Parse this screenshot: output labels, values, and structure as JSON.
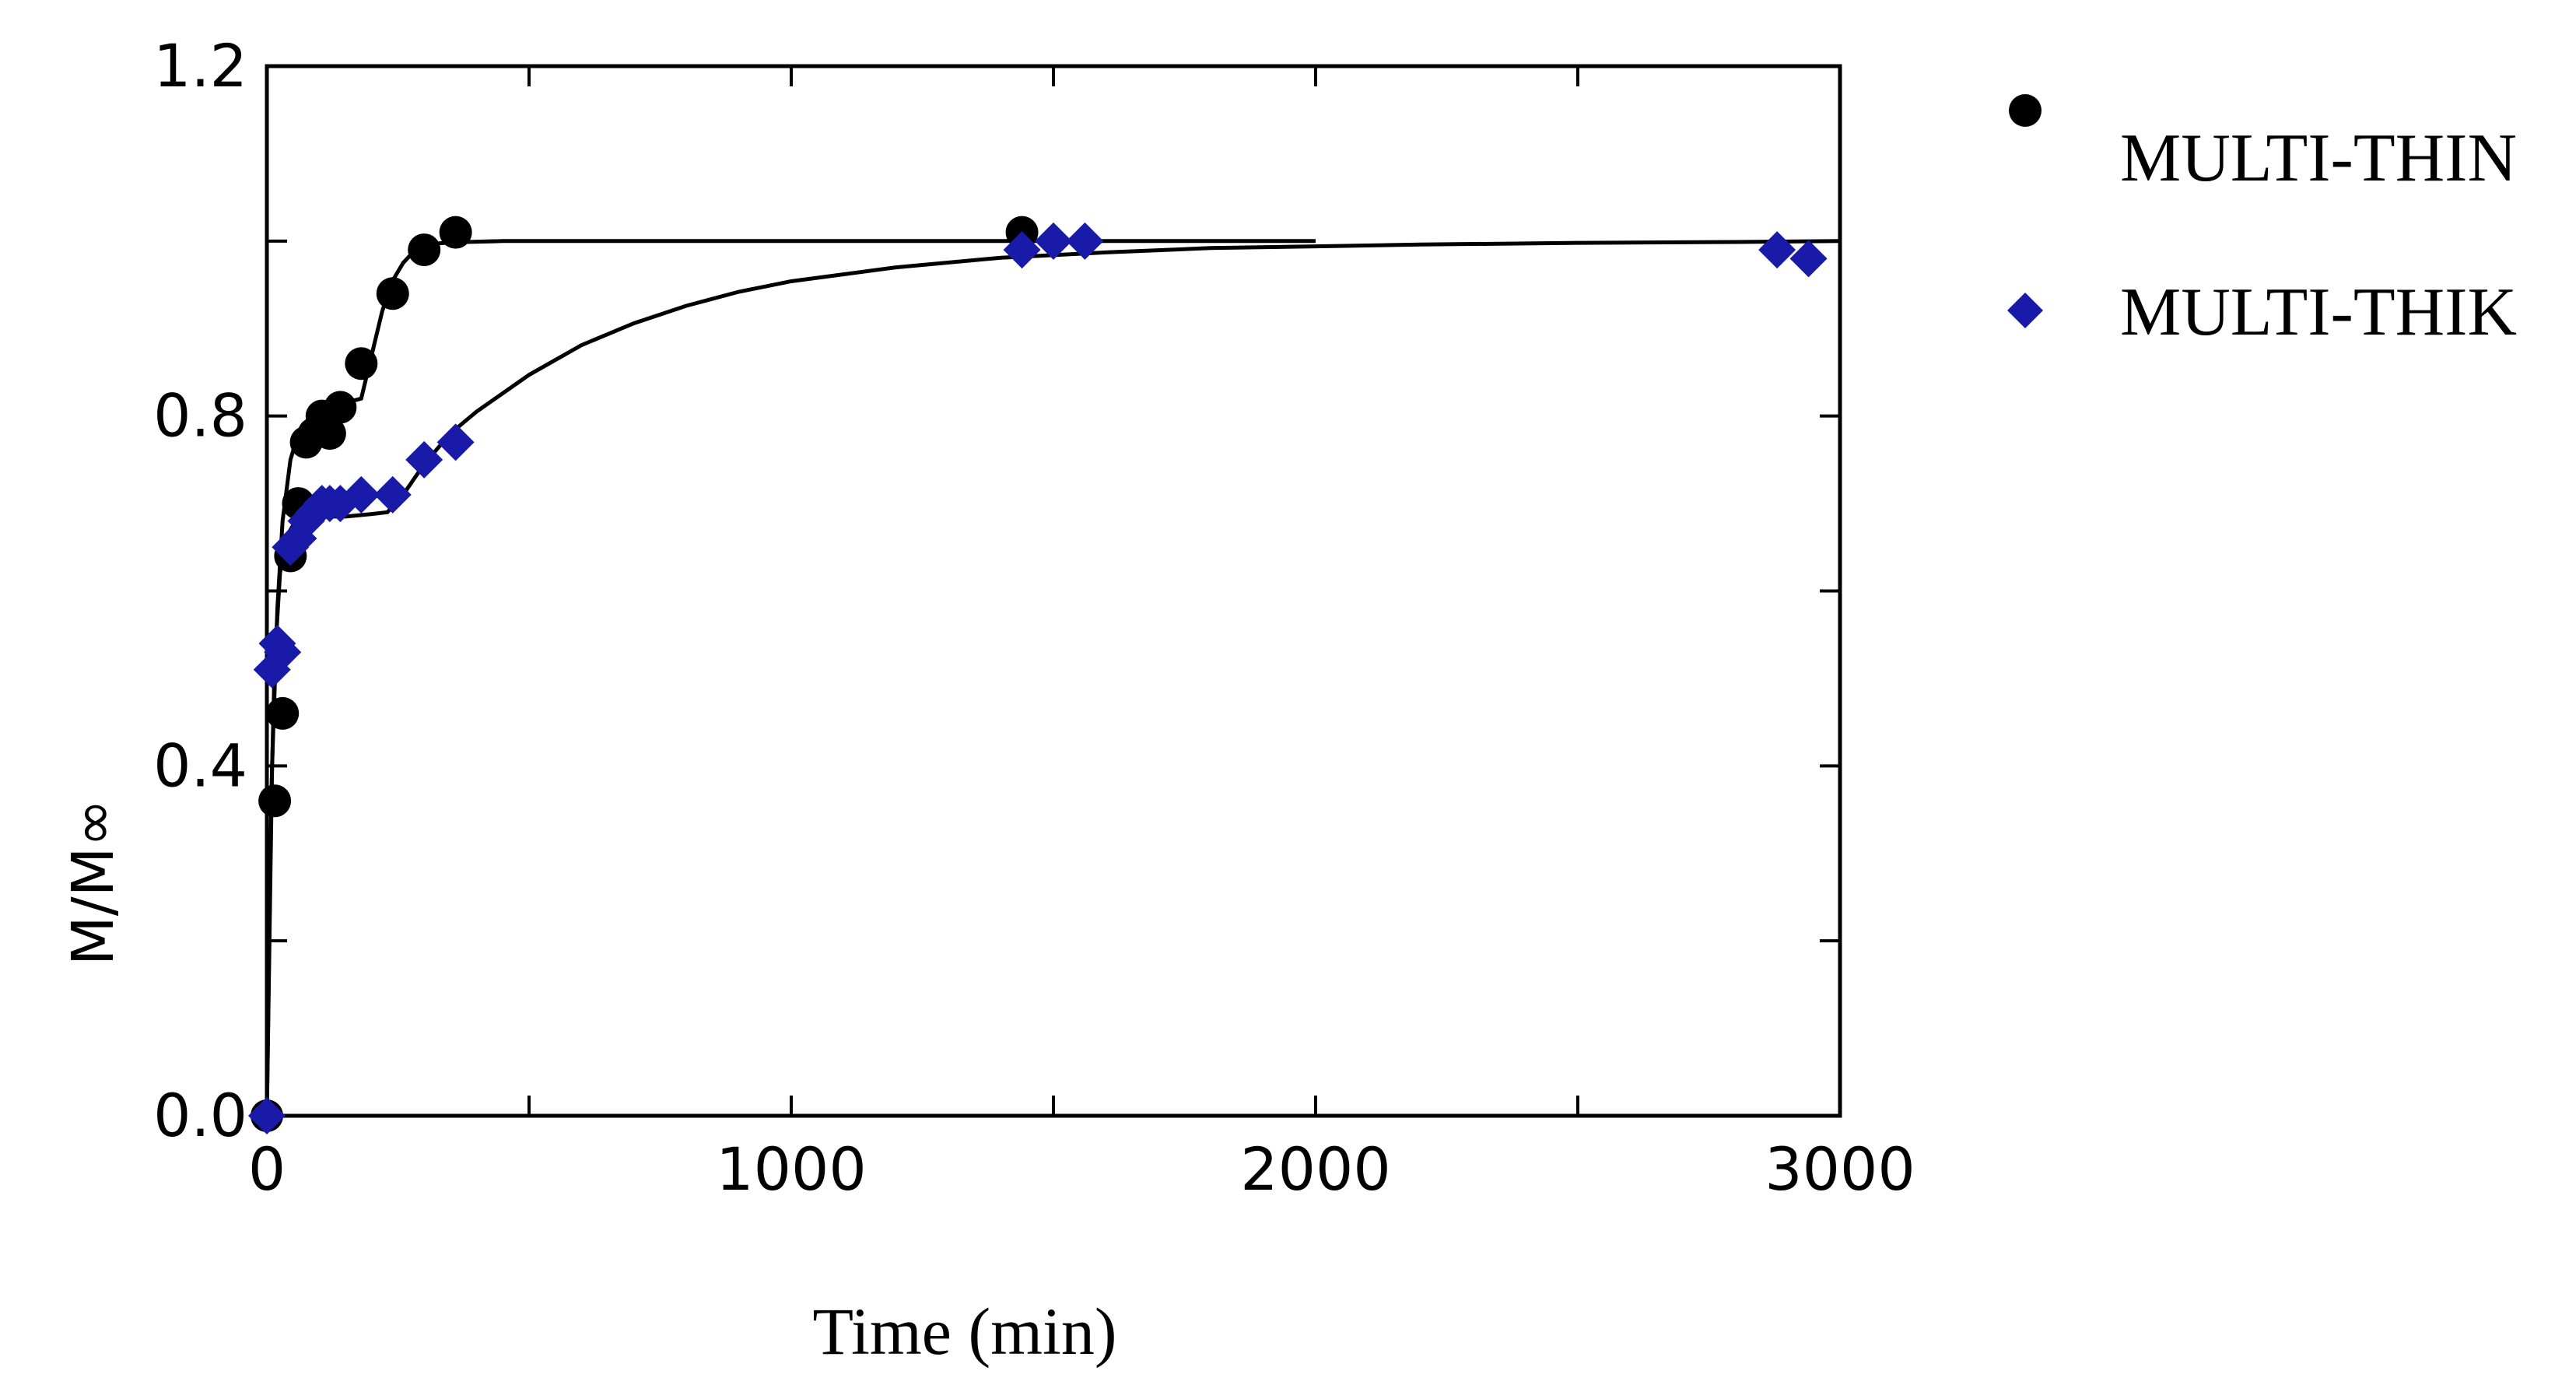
{
  "chart_data": {
    "type": "scatter",
    "title": "",
    "xlabel": "Time (min)",
    "ylabel": "M/M∞",
    "xlim": [
      0,
      3000
    ],
    "ylim": [
      0,
      1.2
    ],
    "xticks": [
      "0",
      "1000",
      "2000",
      "3000"
    ],
    "yticks": [
      "0.0",
      "0.4",
      "0.8",
      "1.2"
    ],
    "grid": false,
    "legend_position": "top-right outside plot",
    "series": [
      {
        "name": "MULTI-THIN",
        "marker": "circle",
        "color": "#000000",
        "x": [
          0,
          15,
          30,
          45,
          60,
          75,
          90,
          105,
          120,
          140,
          180,
          240,
          300,
          360,
          1440
        ],
        "y": [
          0.0,
          0.36,
          0.46,
          0.64,
          0.7,
          0.77,
          0.78,
          0.8,
          0.78,
          0.81,
          0.86,
          0.94,
          0.99,
          1.01,
          1.01
        ]
      },
      {
        "name": "MULTI-THIK",
        "marker": "diamond",
        "color": "#1a1aa8",
        "x": [
          0,
          10,
          20,
          30,
          45,
          60,
          75,
          90,
          105,
          120,
          140,
          180,
          240,
          300,
          360,
          1440,
          1500,
          1560,
          2880,
          2940
        ],
        "y": [
          0.0,
          0.51,
          0.54,
          0.53,
          0.65,
          0.66,
          0.68,
          0.69,
          0.7,
          0.7,
          0.7,
          0.71,
          0.71,
          0.75,
          0.77,
          0.99,
          1.0,
          1.0,
          0.99,
          0.98
        ]
      }
    ],
    "fit_curves": [
      {
        "series": "MULTI-THIN",
        "x": [
          0,
          10,
          20,
          30,
          45,
          60,
          90,
          120,
          150,
          180,
          200,
          220,
          240,
          260,
          280,
          300,
          320,
          340,
          380,
          450,
          600,
          1000,
          1500,
          2000
        ],
        "y": [
          0.0,
          0.4,
          0.58,
          0.68,
          0.75,
          0.78,
          0.8,
          0.81,
          0.815,
          0.82,
          0.87,
          0.92,
          0.955,
          0.975,
          0.988,
          0.994,
          0.997,
          0.998,
          0.999,
          1.0,
          1.0,
          1.0,
          1.0,
          1.0
        ]
      },
      {
        "series": "MULTI-THIK",
        "x": [
          0,
          8,
          15,
          25,
          35,
          50,
          70,
          100,
          150,
          200,
          230,
          260,
          300,
          350,
          400,
          500,
          600,
          700,
          800,
          900,
          1000,
          1200,
          1400,
          1600,
          1800,
          2000,
          2200,
          2500,
          2800,
          3000
        ],
        "y": [
          0.0,
          0.35,
          0.52,
          0.62,
          0.66,
          0.675,
          0.68,
          0.685,
          0.685,
          0.688,
          0.69,
          0.71,
          0.745,
          0.78,
          0.805,
          0.847,
          0.881,
          0.906,
          0.926,
          0.942,
          0.954,
          0.97,
          0.981,
          0.987,
          0.992,
          0.994,
          0.996,
          0.998,
          0.999,
          1.0
        ]
      }
    ]
  }
}
